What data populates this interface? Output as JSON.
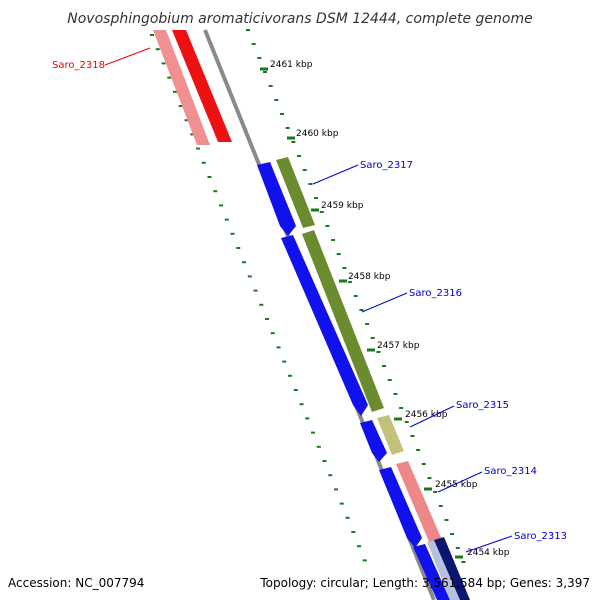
{
  "title": "Novosphingobium aromaticivorans DSM 12444, complete genome",
  "footer": {
    "accession": "Accession: NC_007794",
    "topology": "Topology: circular; Length: 3,561,584 bp; Genes: 3,397"
  },
  "colors": {
    "backbone": "#8a8a8a",
    "tick": "#1a7a1a",
    "label_red": "#ee0000",
    "label_blue": "#0000cc"
  },
  "ruler": [
    {
      "label": "2461 kbp"
    },
    {
      "label": "2460 kbp"
    },
    {
      "label": "2459 kbp"
    },
    {
      "label": "2458 kbp"
    },
    {
      "label": "2457 kbp"
    },
    {
      "label": "2456 kbp"
    },
    {
      "label": "2455 kbp"
    },
    {
      "label": "2454 kbp"
    }
  ],
  "genes": [
    {
      "name": "Saro_2318",
      "label_color": "#ee0000"
    },
    {
      "name": "Saro_2317",
      "label_color": "#0000cc"
    },
    {
      "name": "Saro_2316",
      "label_color": "#0000cc"
    },
    {
      "name": "Saro_2315",
      "label_color": "#0000cc"
    },
    {
      "name": "Saro_2314",
      "label_color": "#0000cc"
    },
    {
      "name": "Saro_2313",
      "label_color": "#0000cc"
    }
  ]
}
